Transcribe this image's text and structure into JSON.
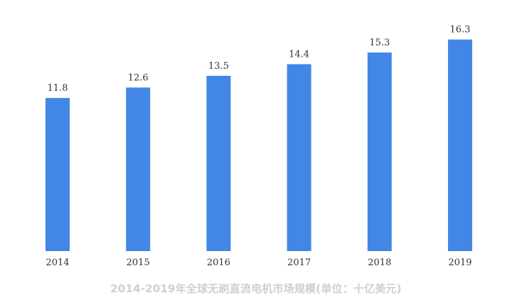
{
  "caption": "2014-2019年全球无刷直流电机市场规模(单位：十亿美元)",
  "colors": {
    "bar": "#4287e6",
    "label_text": "#333333",
    "caption_text": "#cfcfcf"
  },
  "chart_data": {
    "type": "bar",
    "categories": [
      "2014",
      "2015",
      "2016",
      "2017",
      "2018",
      "2019"
    ],
    "values": [
      11.8,
      12.6,
      13.5,
      14.4,
      15.3,
      16.3
    ],
    "value_labels": [
      "11.8",
      "12.6",
      "13.5",
      "14.4",
      "15.3",
      "16.3"
    ],
    "title": "2014-2019年全球无刷直流电机市场规模(单位：十亿美元)",
    "xlabel": "",
    "ylabel": "",
    "grid": false,
    "legend": "none"
  }
}
